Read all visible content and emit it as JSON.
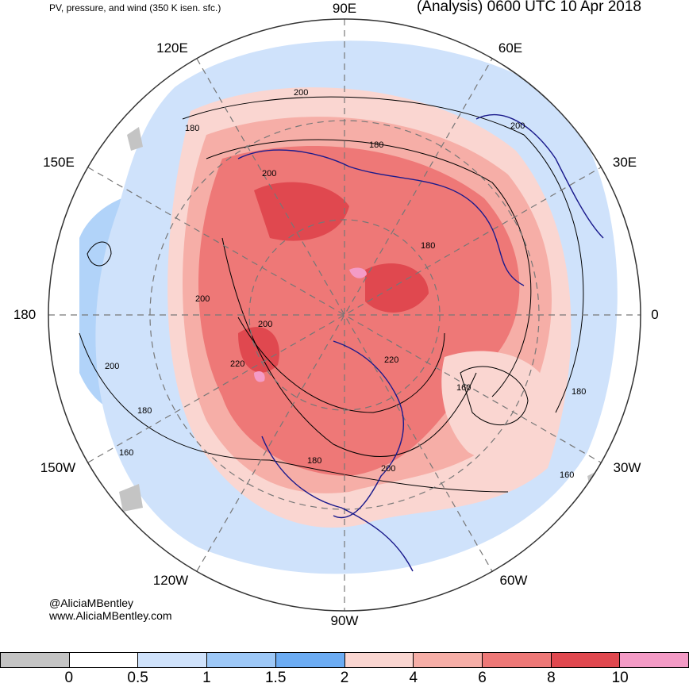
{
  "header": {
    "left_title": "PV, pressure, and wind (350 K isen. sfc.)",
    "right_title": "(Analysis) 0600 UTC 10 Apr 2018"
  },
  "longitude_labels": {
    "lon_90e": "90E",
    "lon_60e": "60E",
    "lon_120e": "120E",
    "lon_150e": "150E",
    "lon_30e": "30E",
    "lon_180": "180",
    "lon_0": "0",
    "lon_150w": "150W",
    "lon_30w": "30W",
    "lon_120w": "120W",
    "lon_60w": "60W",
    "lon_90w": "90W"
  },
  "contour_labels": {
    "c1": "200",
    "c2": "180",
    "c3": "180",
    "c4": "200",
    "c5": "200",
    "c6": "180",
    "c7": "200",
    "c8": "200",
    "c9": "220",
    "c10": "220",
    "c11": "200",
    "c12": "180",
    "c13": "160",
    "c14": "180",
    "c15": "160",
    "c16": "160",
    "c17": "180",
    "c18": "200"
  },
  "credit": {
    "handle": "@AliciaMBentley",
    "site": "www.AliciaMBentley.com"
  },
  "colorbar": {
    "colors": [
      "#c4c4c4",
      "#ffffff",
      "#cfe2fb",
      "#9dc8f7",
      "#6cacf3",
      "#fad6d1",
      "#f6aea7",
      "#ee7877",
      "#e0484f",
      "#f49bc6"
    ],
    "labels": [
      "0",
      "0.5",
      "1",
      "1.5",
      "2",
      "4",
      "6",
      "8",
      "10"
    ]
  },
  "map_colors": {
    "ocean_blue": "#9dc8f7",
    "light_blue": "#cfe2fb",
    "pink": "#fad6d1",
    "salmon": "#f6aea7",
    "red": "#ee7877",
    "dark_red": "#e0484f",
    "magenta": "#f49bc6",
    "grey": "#c4c4c4",
    "coast": "#1a1a8c"
  }
}
